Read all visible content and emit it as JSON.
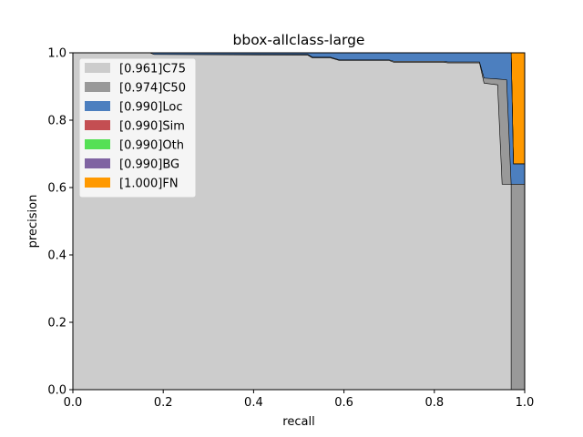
{
  "chart_data": {
    "type": "area",
    "title": "bbox-allclass-large",
    "xlabel": "recall",
    "ylabel": "precision",
    "xlim": [
      0.0,
      1.0
    ],
    "ylim": [
      0.0,
      1.0
    ],
    "xticks": [
      "0.0",
      "0.2",
      "0.4",
      "0.6",
      "0.8",
      "1.0"
    ],
    "yticks": [
      "0.0",
      "0.2",
      "0.4",
      "0.6",
      "0.8",
      "1.0"
    ],
    "grid": false,
    "legend_position": "upper-left",
    "series": [
      {
        "name": "[0.961]C75",
        "color": "#cccccc",
        "points": [
          [
            0.0,
            1.0
          ],
          [
            0.17,
            1.0
          ],
          [
            0.18,
            0.995
          ],
          [
            0.52,
            0.993
          ],
          [
            0.53,
            0.985
          ],
          [
            0.57,
            0.985
          ],
          [
            0.59,
            0.977
          ],
          [
            0.7,
            0.977
          ],
          [
            0.71,
            0.972
          ],
          [
            0.82,
            0.972
          ],
          [
            0.83,
            0.97
          ],
          [
            0.9,
            0.97
          ],
          [
            0.91,
            0.91
          ],
          [
            0.94,
            0.905
          ],
          [
            0.95,
            0.61
          ],
          [
            0.97,
            0.61
          ],
          [
            0.97,
            0.0
          ],
          [
            1.0,
            0.0
          ]
        ]
      },
      {
        "name": "[0.974]C50",
        "color": "#999999",
        "points": [
          [
            0.0,
            1.0
          ],
          [
            0.17,
            1.0
          ],
          [
            0.18,
            0.995
          ],
          [
            0.52,
            0.995
          ],
          [
            0.53,
            0.987
          ],
          [
            0.57,
            0.987
          ],
          [
            0.59,
            0.979
          ],
          [
            0.7,
            0.979
          ],
          [
            0.71,
            0.975
          ],
          [
            0.82,
            0.975
          ],
          [
            0.83,
            0.973
          ],
          [
            0.9,
            0.973
          ],
          [
            0.91,
            0.925
          ],
          [
            0.94,
            0.922
          ],
          [
            0.96,
            0.92
          ],
          [
            0.97,
            0.61
          ],
          [
            1.0,
            0.61
          ]
        ]
      },
      {
        "name": "[0.990]Loc",
        "color": "#4c7fbf",
        "points": [
          [
            0.0,
            1.0
          ],
          [
            0.97,
            1.0
          ],
          [
            0.975,
            0.67
          ],
          [
            1.0,
            0.67
          ]
        ]
      },
      {
        "name": "[0.990]Sim",
        "color": "#c44e52",
        "points": [
          [
            0.0,
            1.0
          ],
          [
            0.97,
            1.0
          ],
          [
            0.975,
            0.67
          ],
          [
            1.0,
            0.67
          ]
        ]
      },
      {
        "name": "[0.990]Oth",
        "color": "#55e055",
        "points": [
          [
            0.0,
            1.0
          ],
          [
            0.97,
            1.0
          ],
          [
            0.975,
            0.67
          ],
          [
            1.0,
            0.67
          ]
        ]
      },
      {
        "name": "[0.990]BG",
        "color": "#8064a2",
        "points": [
          [
            0.0,
            1.0
          ],
          [
            0.97,
            1.0
          ],
          [
            0.975,
            0.67
          ],
          [
            1.0,
            0.67
          ]
        ]
      },
      {
        "name": "[1.000]FN",
        "color": "#ff9900",
        "points": [
          [
            0.0,
            1.0
          ],
          [
            1.0,
            1.0
          ]
        ]
      }
    ]
  }
}
